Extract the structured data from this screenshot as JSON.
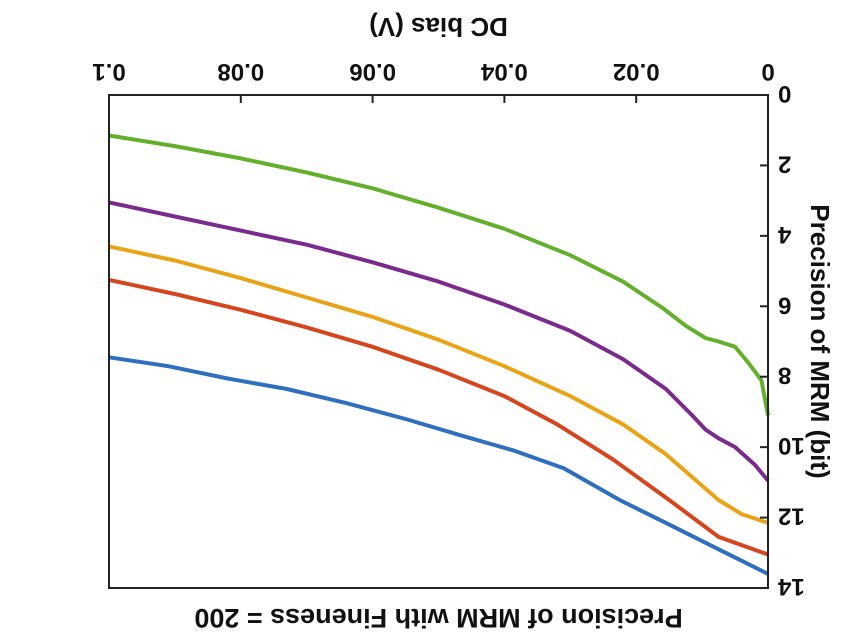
{
  "chart_data": {
    "type": "line",
    "title": "Precision of MRM with Fineness = 200",
    "xlabel": "DC bias (V)",
    "ylabel": "Precision of MRM (bit)",
    "xlim": [
      0,
      0.1
    ],
    "ylim": [
      0,
      14
    ],
    "x_ticks": [
      "0",
      "0.02",
      "0.04",
      "0.06",
      "0.08",
      "0.1"
    ],
    "y_ticks": [
      "0",
      "2",
      "4",
      "6",
      "8",
      "10",
      "12",
      "14"
    ],
    "x_tick_values": [
      0,
      0.02,
      0.04,
      0.06,
      0.08,
      0.1
    ],
    "y_tick_values": [
      0,
      2,
      4,
      6,
      8,
      10,
      12,
      14
    ],
    "grid": false,
    "orientation": "figure rendered rotated 180 degrees",
    "series": [
      {
        "color": "#2f6fbf",
        "x": [
          0,
          0.0075,
          0.015,
          0.0225,
          0.031,
          0.0385,
          0.046,
          0.055,
          0.064,
          0.073,
          0.082,
          0.091,
          0.1
        ],
        "y": [
          13.6,
          12.9,
          12.2,
          11.5,
          10.6,
          10.1,
          9.7,
          9.2,
          8.75,
          8.35,
          8.05,
          7.7,
          7.45
        ]
      },
      {
        "color": "#d6461e",
        "x": [
          0,
          0.0075,
          0.015,
          0.0235,
          0.032,
          0.04,
          0.05,
          0.06,
          0.07,
          0.08,
          0.09,
          0.1
        ],
        "y": [
          13.05,
          12.55,
          11.5,
          10.35,
          9.35,
          8.55,
          7.8,
          7.15,
          6.6,
          6.1,
          5.65,
          5.25
        ]
      },
      {
        "color": "#e8a416",
        "x": [
          0,
          0.004,
          0.0075,
          0.0115,
          0.0155,
          0.022,
          0.03,
          0.04,
          0.05,
          0.06,
          0.07,
          0.08,
          0.09,
          0.1
        ],
        "y": [
          12.15,
          11.9,
          11.5,
          10.85,
          10.2,
          9.35,
          8.55,
          7.7,
          6.95,
          6.3,
          5.75,
          5.2,
          4.7,
          4.3
        ]
      },
      {
        "color": "#7b2a8e",
        "x": [
          0,
          0.002,
          0.005,
          0.0075,
          0.0095,
          0.0115,
          0.0155,
          0.022,
          0.03,
          0.04,
          0.05,
          0.06,
          0.07,
          0.08,
          0.09,
          0.1
        ],
        "y": [
          10.95,
          10.5,
          10.0,
          9.75,
          9.5,
          9.1,
          8.35,
          7.5,
          6.7,
          5.95,
          5.3,
          4.75,
          4.25,
          3.85,
          3.45,
          3.05
        ]
      },
      {
        "color": "#64b02d",
        "x": [
          0,
          0.001,
          0.003,
          0.005,
          0.0075,
          0.0095,
          0.0125,
          0.016,
          0.022,
          0.03,
          0.04,
          0.05,
          0.06,
          0.07,
          0.08,
          0.09,
          0.1
        ],
        "y": [
          9.1,
          8.1,
          7.6,
          7.15,
          7.0,
          6.9,
          6.55,
          6.05,
          5.3,
          4.55,
          3.8,
          3.2,
          2.65,
          2.2,
          1.8,
          1.45,
          1.15
        ]
      }
    ]
  }
}
